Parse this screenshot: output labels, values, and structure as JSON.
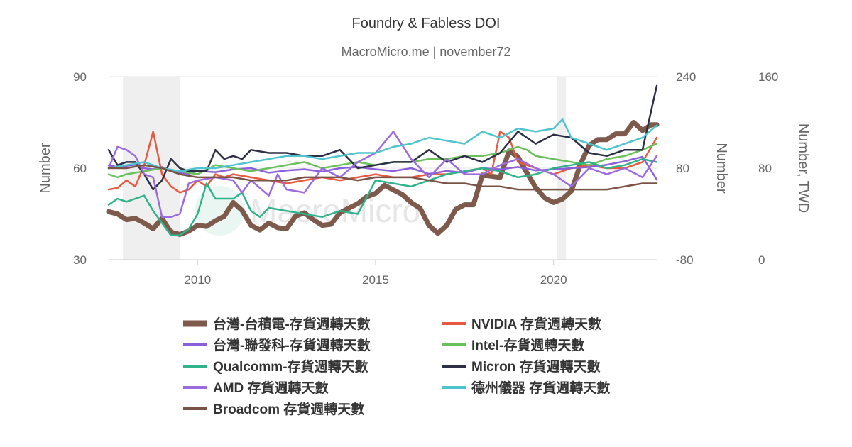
{
  "chart_data": {
    "type": "line",
    "title": "Foundry & Fabless DOI",
    "subtitle": "MacroMicro.me | november72",
    "watermark": "MacroMicro",
    "x_ticks": [
      "2010",
      "2015",
      "2020"
    ],
    "x_range": [
      2007.5,
      2022.9
    ],
    "recession_bands": [
      [
        2007.9,
        2009.5
      ],
      [
        2020.1,
        2020.35
      ]
    ],
    "grid": "horizontal",
    "legend_position": "bottom",
    "axes": {
      "left": {
        "title": "Number",
        "ticks": [
          "90",
          "60",
          "30"
        ],
        "range": [
          30,
          90
        ]
      },
      "middle": {
        "title": "Number",
        "ticks": [
          "240",
          "80",
          "-80"
        ],
        "range": [
          -80,
          240
        ]
      },
      "right": {
        "title": "Number, TWD",
        "ticks": [
          "160",
          "80",
          "0"
        ],
        "range": [
          0,
          160
        ]
      }
    },
    "series": [
      {
        "name": "台灣-台積電-存貨週轉天數",
        "color": "#7d5a4b",
        "width": 7,
        "axis": "right",
        "x": [
          2007.5,
          2007.75,
          2008,
          2008.25,
          2008.5,
          2008.75,
          2009,
          2009.25,
          2009.5,
          2009.75,
          2010,
          2010.25,
          2010.5,
          2010.75,
          2011,
          2011.25,
          2011.5,
          2011.75,
          2012,
          2012.25,
          2012.5,
          2012.75,
          2013,
          2013.25,
          2013.5,
          2013.75,
          2014,
          2014.25,
          2014.5,
          2014.75,
          2015,
          2015.25,
          2015.5,
          2015.75,
          2016,
          2016.25,
          2016.5,
          2016.75,
          2017,
          2017.25,
          2017.5,
          2017.75,
          2018,
          2018.25,
          2018.5,
          2018.75,
          2019,
          2019.25,
          2019.5,
          2019.75,
          2020,
          2020.25,
          2020.5,
          2020.75,
          2021,
          2021.25,
          2021.5,
          2021.75,
          2022,
          2022.25,
          2022.5,
          2022.75,
          2022.9
        ],
        "values": [
          42,
          40,
          35,
          36,
          32,
          27,
          36,
          24,
          22,
          25,
          30,
          29,
          34,
          38,
          50,
          43,
          30,
          26,
          32,
          28,
          27,
          38,
          41,
          35,
          30,
          31,
          41,
          45,
          49,
          55,
          58,
          65,
          61,
          57,
          50,
          45,
          30,
          23,
          30,
          44,
          48,
          48,
          74,
          73,
          72,
          95,
          90,
          76,
          63,
          54,
          50,
          53,
          60,
          83,
          100,
          105,
          105,
          110,
          110,
          120,
          113,
          118,
          118
        ]
      },
      {
        "name": "NVIDIA 存貨週轉天數",
        "color": "#e85a3f",
        "width": 2.5,
        "axis": "left",
        "x": [
          2007.5,
          2007.75,
          2008,
          2008.25,
          2008.5,
          2008.75,
          2009,
          2009.25,
          2009.5,
          2009.75,
          2010,
          2010.25,
          2010.5,
          2010.75,
          2011,
          2011.5,
          2012,
          2012.5,
          2013,
          2013.5,
          2014,
          2014.5,
          2015,
          2015.5,
          2016,
          2016.5,
          2017,
          2017.5,
          2018,
          2018.25,
          2018.5,
          2018.75,
          2019,
          2019.5,
          2020,
          2020.5,
          2021,
          2021.5,
          2022,
          2022.5,
          2022.9
        ],
        "values": [
          53,
          53.5,
          56,
          54,
          61,
          72,
          58,
          54,
          52,
          53,
          56,
          54,
          58,
          57,
          58,
          57,
          56,
          55,
          56,
          57,
          56,
          57,
          58,
          57,
          57,
          58,
          58,
          59,
          60,
          58,
          72,
          70,
          62,
          60,
          58,
          60,
          61,
          60,
          60,
          62,
          70
        ]
      },
      {
        "name": "台灣-聯發科-存貨週轉天數",
        "color": "#8b5fd9",
        "width": 2.5,
        "axis": "middle",
        "x": [
          2007.5,
          2007.75,
          2008,
          2008.25,
          2008.5,
          2008.75,
          2009,
          2009.25,
          2009.5,
          2009.75,
          2010,
          2010.5,
          2011,
          2011.5,
          2012,
          2012.5,
          2013,
          2013.5,
          2014,
          2014.5,
          2015,
          2015.5,
          2016,
          2016.5,
          2017,
          2017.5,
          2018,
          2018.5,
          2019,
          2019.5,
          2020,
          2020.5,
          2021,
          2021.5,
          2022,
          2022.5,
          2022.9
        ],
        "values": [
          85,
          82,
          84,
          86,
          80,
          78,
          82,
          76,
          72,
          70,
          75,
          73,
          78,
          80,
          72,
          76,
          78,
          74,
          80,
          82,
          78,
          75,
          80,
          70,
          75,
          72,
          80,
          78,
          82,
          76,
          78,
          80,
          82,
          86,
          92,
          100,
          60
        ]
      },
      {
        "name": "Intel-存貨週轉天數",
        "color": "#6cc05b",
        "width": 2.5,
        "axis": "left",
        "x": [
          2007.5,
          2007.75,
          2008,
          2008.5,
          2009,
          2009.5,
          2010,
          2010.5,
          2011,
          2011.5,
          2012,
          2012.5,
          2013,
          2013.5,
          2014,
          2014.5,
          2015,
          2015.5,
          2016,
          2016.5,
          2017,
          2017.5,
          2018,
          2018.5,
          2019,
          2019.25,
          2019.5,
          2020,
          2020.5,
          2021,
          2021.5,
          2022,
          2022.5,
          2022.9
        ],
        "values": [
          58,
          57,
          58,
          59,
          60,
          59,
          58,
          61,
          60,
          59,
          60,
          61,
          62,
          60,
          61,
          62,
          61,
          62,
          62,
          63,
          63,
          64,
          64,
          65,
          67,
          66,
          64,
          63,
          62,
          61,
          63,
          64,
          66,
          68
        ]
      },
      {
        "name": "Qualcomm-存貨週轉天數",
        "color": "#2fb38a",
        "width": 2.5,
        "axis": "left",
        "x": [
          2007.5,
          2007.75,
          2008,
          2008.25,
          2008.5,
          2008.75,
          2009,
          2009.25,
          2009.5,
          2009.75,
          2010,
          2010.25,
          2010.5,
          2010.75,
          2011,
          2011.25,
          2011.5,
          2011.75,
          2012,
          2012.5,
          2013,
          2013.5,
          2014,
          2014.5,
          2015,
          2015.5,
          2016,
          2016.5,
          2017,
          2017.5,
          2018,
          2018.5,
          2019,
          2019.5,
          2020,
          2020.5,
          2021,
          2021.5,
          2022,
          2022.5,
          2022.9
        ],
        "values": [
          48,
          50,
          49,
          50,
          51,
          46,
          42,
          38,
          38,
          40,
          45,
          55,
          50,
          50,
          50,
          52,
          46,
          44,
          47,
          46,
          45,
          44,
          46,
          45,
          56,
          55,
          54,
          56,
          58,
          59,
          60,
          59,
          57,
          58,
          60,
          61,
          62,
          60,
          61,
          63,
          62
        ]
      },
      {
        "name": "Micron 存貨週轉天數",
        "color": "#2c2f45",
        "width": 2.5,
        "axis": "left",
        "x": [
          2007.5,
          2007.75,
          2008,
          2008.25,
          2008.5,
          2008.75,
          2009,
          2009.25,
          2009.5,
          2009.75,
          2010,
          2010.25,
          2010.5,
          2010.75,
          2011,
          2011.25,
          2011.5,
          2012,
          2012.5,
          2013,
          2013.5,
          2014,
          2014.5,
          2015,
          2015.5,
          2016,
          2016.5,
          2017,
          2017.5,
          2018,
          2018.5,
          2019,
          2019.5,
          2020,
          2020.5,
          2021,
          2021.5,
          2022,
          2022.5,
          2022.9
        ],
        "values": [
          66,
          61,
          62,
          62,
          58,
          53,
          56,
          63,
          60,
          59,
          59,
          59,
          66,
          63,
          64,
          63,
          66,
          65,
          65,
          64,
          64,
          66,
          60,
          61,
          62,
          62,
          66,
          62,
          64,
          62,
          65,
          72,
          68,
          71,
          70,
          65,
          64,
          66,
          66,
          87
        ]
      },
      {
        "name": "AMD 存貨週轉天數",
        "color": "#9d6be0",
        "width": 2.5,
        "axis": "left",
        "x": [
          2007.5,
          2007.75,
          2008,
          2008.25,
          2008.5,
          2008.75,
          2009,
          2009.25,
          2009.5,
          2009.75,
          2010,
          2010.5,
          2011,
          2011.25,
          2011.5,
          2012,
          2012.25,
          2012.5,
          2013,
          2013.5,
          2014,
          2014.5,
          2015,
          2015.5,
          2016,
          2016.5,
          2017,
          2017.5,
          2018,
          2018.5,
          2019,
          2019.5,
          2020,
          2020.5,
          2021,
          2021.5,
          2022,
          2022.5,
          2022.9
        ],
        "values": [
          60,
          67,
          66,
          64,
          58,
          57,
          44,
          44,
          45,
          55,
          56,
          57,
          56,
          52,
          56,
          51,
          58,
          53,
          52,
          60,
          57,
          62,
          65,
          72,
          63,
          57,
          63,
          58,
          58,
          61,
          63,
          60,
          58,
          54,
          60,
          58,
          60,
          57,
          64
        ]
      },
      {
        "name": "德州儀器 存貨週轉天數",
        "color": "#4fc4cf",
        "width": 2.5,
        "axis": "left",
        "x": [
          2007.5,
          2008,
          2008.5,
          2009,
          2009.5,
          2010,
          2010.5,
          2011,
          2011.5,
          2012,
          2012.5,
          2013,
          2013.5,
          2014,
          2014.5,
          2015,
          2015.5,
          2016,
          2016.5,
          2017,
          2017.5,
          2018,
          2018.5,
          2019,
          2019.5,
          2020,
          2020.25,
          2020.5,
          2021,
          2021.5,
          2022,
          2022.5,
          2022.9
        ],
        "values": [
          60,
          61,
          62,
          60,
          59,
          60,
          60,
          61,
          62,
          63,
          64,
          64,
          63,
          64,
          65,
          65,
          67,
          68,
          70,
          69,
          68,
          72,
          70,
          73,
          72,
          73,
          76,
          70,
          68,
          66,
          68,
          70,
          74
        ]
      },
      {
        "name": "Broadcom 存貨週轉天數",
        "color": "#7a5346",
        "width": 2.5,
        "axis": "left",
        "x": [
          2007.5,
          2008,
          2008.5,
          2009,
          2009.5,
          2010,
          2010.5,
          2011,
          2011.5,
          2012,
          2012.5,
          2013,
          2013.5,
          2014,
          2014.5,
          2015,
          2015.5,
          2016,
          2016.5,
          2017,
          2017.5,
          2018,
          2018.5,
          2019,
          2019.5,
          2020,
          2020.5,
          2021,
          2021.5,
          2022,
          2022.5,
          2022.9
        ],
        "values": [
          60,
          60,
          61,
          60,
          58,
          57,
          57,
          57,
          56,
          56,
          56,
          57,
          57,
          57,
          56,
          57,
          57,
          57,
          56,
          55,
          55,
          54,
          54,
          53,
          53,
          53,
          53,
          53,
          53,
          54,
          55,
          55
        ]
      }
    ]
  }
}
